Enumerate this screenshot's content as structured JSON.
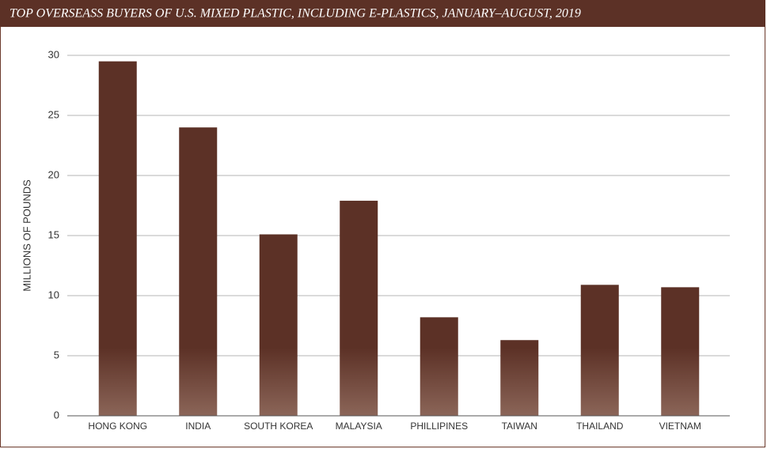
{
  "chart_data": {
    "type": "bar",
    "title": "TOP OVERSEASS BUYERS OF U.S. MIXED PLASTIC, INCLUDING E-PLASTICS, JANUARY–AUGUST, 2019",
    "y_label": "MILLIONS OF POUNDS",
    "categories": [
      "HONG KONG",
      "INDIA",
      "SOUTH KOREA",
      "MALAYSIA",
      "PHILLIPINES",
      "TAIWAN",
      "THAILAND",
      "VIETNAM"
    ],
    "values": [
      29.5,
      24,
      15.1,
      17.9,
      8.2,
      6.3,
      10.9,
      10.7
    ],
    "color": "#5c3126",
    "ylim": [
      0,
      30
    ],
    "yticks": [
      0,
      5,
      10,
      15,
      20,
      25,
      30
    ],
    "grid": true
  }
}
